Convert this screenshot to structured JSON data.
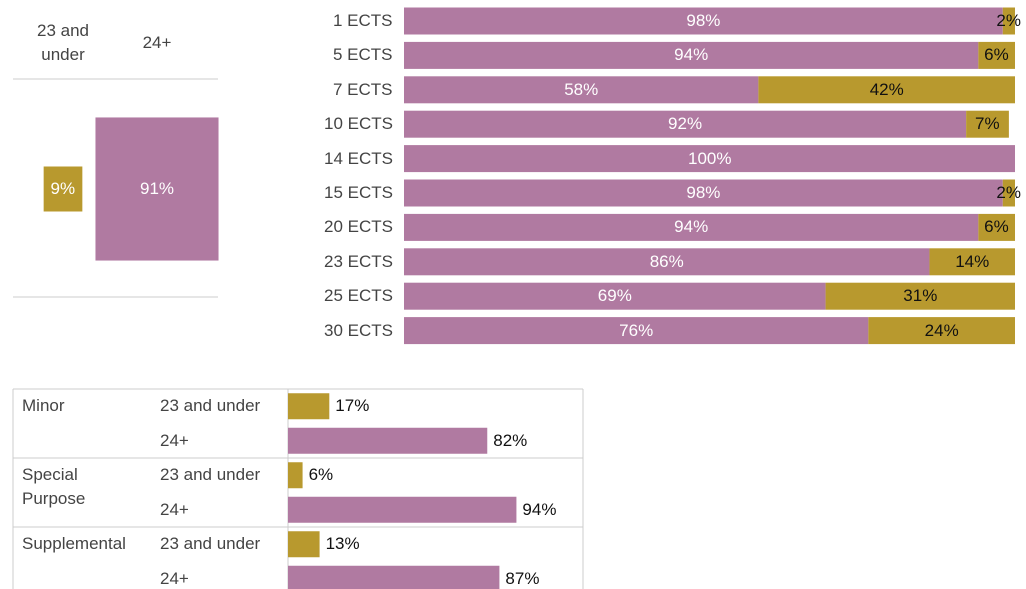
{
  "chart_data": [
    {
      "type": "box",
      "categories": [
        "23 and under",
        "24+"
      ],
      "values": [
        9,
        91
      ],
      "value_labels": [
        "9%",
        "91%"
      ],
      "colors": [
        "#b8992e",
        "#b07aa1"
      ]
    },
    {
      "type": "stacked_bar",
      "categories": [
        "1 ECTS",
        "5 ECTS",
        "7 ECTS",
        "10 ECTS",
        "14 ECTS",
        "15 ECTS",
        "20 ECTS",
        "23 ECTS",
        "25 ECTS",
        "30 ECTS"
      ],
      "series": [
        {
          "color": "#b07aa1",
          "values": [
            98,
            94,
            58,
            92,
            100,
            98,
            94,
            86,
            69,
            76
          ],
          "value_labels": [
            "98%",
            "94%",
            "58%",
            "92%",
            "100%",
            "98%",
            "94%",
            "86%",
            "69%",
            "76%"
          ]
        },
        {
          "color": "#b8992e",
          "values": [
            2,
            6,
            42,
            7,
            null,
            2,
            6,
            14,
            31,
            24
          ],
          "value_labels": [
            "2%",
            "6%",
            "42%",
            "7%",
            null,
            "2%",
            "6%",
            "14%",
            "31%",
            "24%"
          ]
        }
      ],
      "xlim": [
        0,
        100
      ]
    },
    {
      "type": "grouped_bar",
      "categories": [
        "Minor",
        "Special Purpose",
        "Supplemental"
      ],
      "series": [
        {
          "name": "23 and under",
          "color": "#b8992e",
          "values": [
            17,
            6,
            13
          ],
          "value_labels": [
            "17%",
            "6%",
            "13%"
          ]
        },
        {
          "name": "24+",
          "color": "#b07aa1",
          "values": [
            82,
            94,
            87
          ],
          "value_labels": [
            "82%",
            "94%",
            "87%"
          ]
        }
      ],
      "xlim": [
        0,
        100
      ]
    }
  ]
}
